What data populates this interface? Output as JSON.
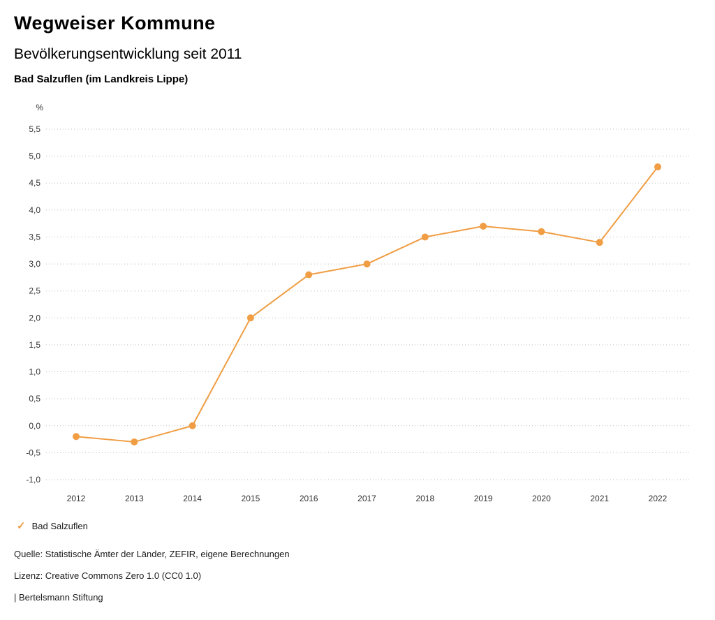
{
  "header": {
    "title": "Wegweiser Kommune",
    "subtitle": "Bevölkerungsentwicklung seit 2011",
    "region": "Bad Salzuflen (im Landkreis Lippe)"
  },
  "chart_data": {
    "type": "line",
    "title": "Bevölkerungsentwicklung seit 2011",
    "unit_label": "%",
    "categories": [
      "2012",
      "2013",
      "2014",
      "2015",
      "2016",
      "2017",
      "2018",
      "2019",
      "2020",
      "2021",
      "2022"
    ],
    "series": [
      {
        "name": "Bad Salzuflen",
        "values": [
          -0.2,
          -0.3,
          0.0,
          2.0,
          2.8,
          3.0,
          3.5,
          3.7,
          3.6,
          3.4,
          4.8
        ],
        "color": "#f09d43"
      }
    ],
    "ylim": [
      -1.0,
      5.5
    ],
    "ytick_step": 0.5,
    "ytick_labels": [
      "5,5",
      "5,0",
      "4,5",
      "4,0",
      "3,5",
      "3,0",
      "2,5",
      "2,0",
      "1,5",
      "1,0",
      "0,5",
      "0,0",
      "-0,5",
      "-1,0"
    ],
    "grid": "horizontal-dotted",
    "grid_color": "#bdbdbd",
    "tick_label_color": "#333333",
    "legend_position": "bottom-left"
  },
  "legend": {
    "check_icon": "✓",
    "check_color": "#f09d43",
    "label": "Bad Salzuflen"
  },
  "footer": {
    "source": "Quelle: Statistische Ämter der Länder, ZEFIR, eigene Berechnungen",
    "license": "Lizenz: Creative Commons Zero 1.0 (CC0 1.0)",
    "brand": "| Bertelsmann Stiftung"
  }
}
